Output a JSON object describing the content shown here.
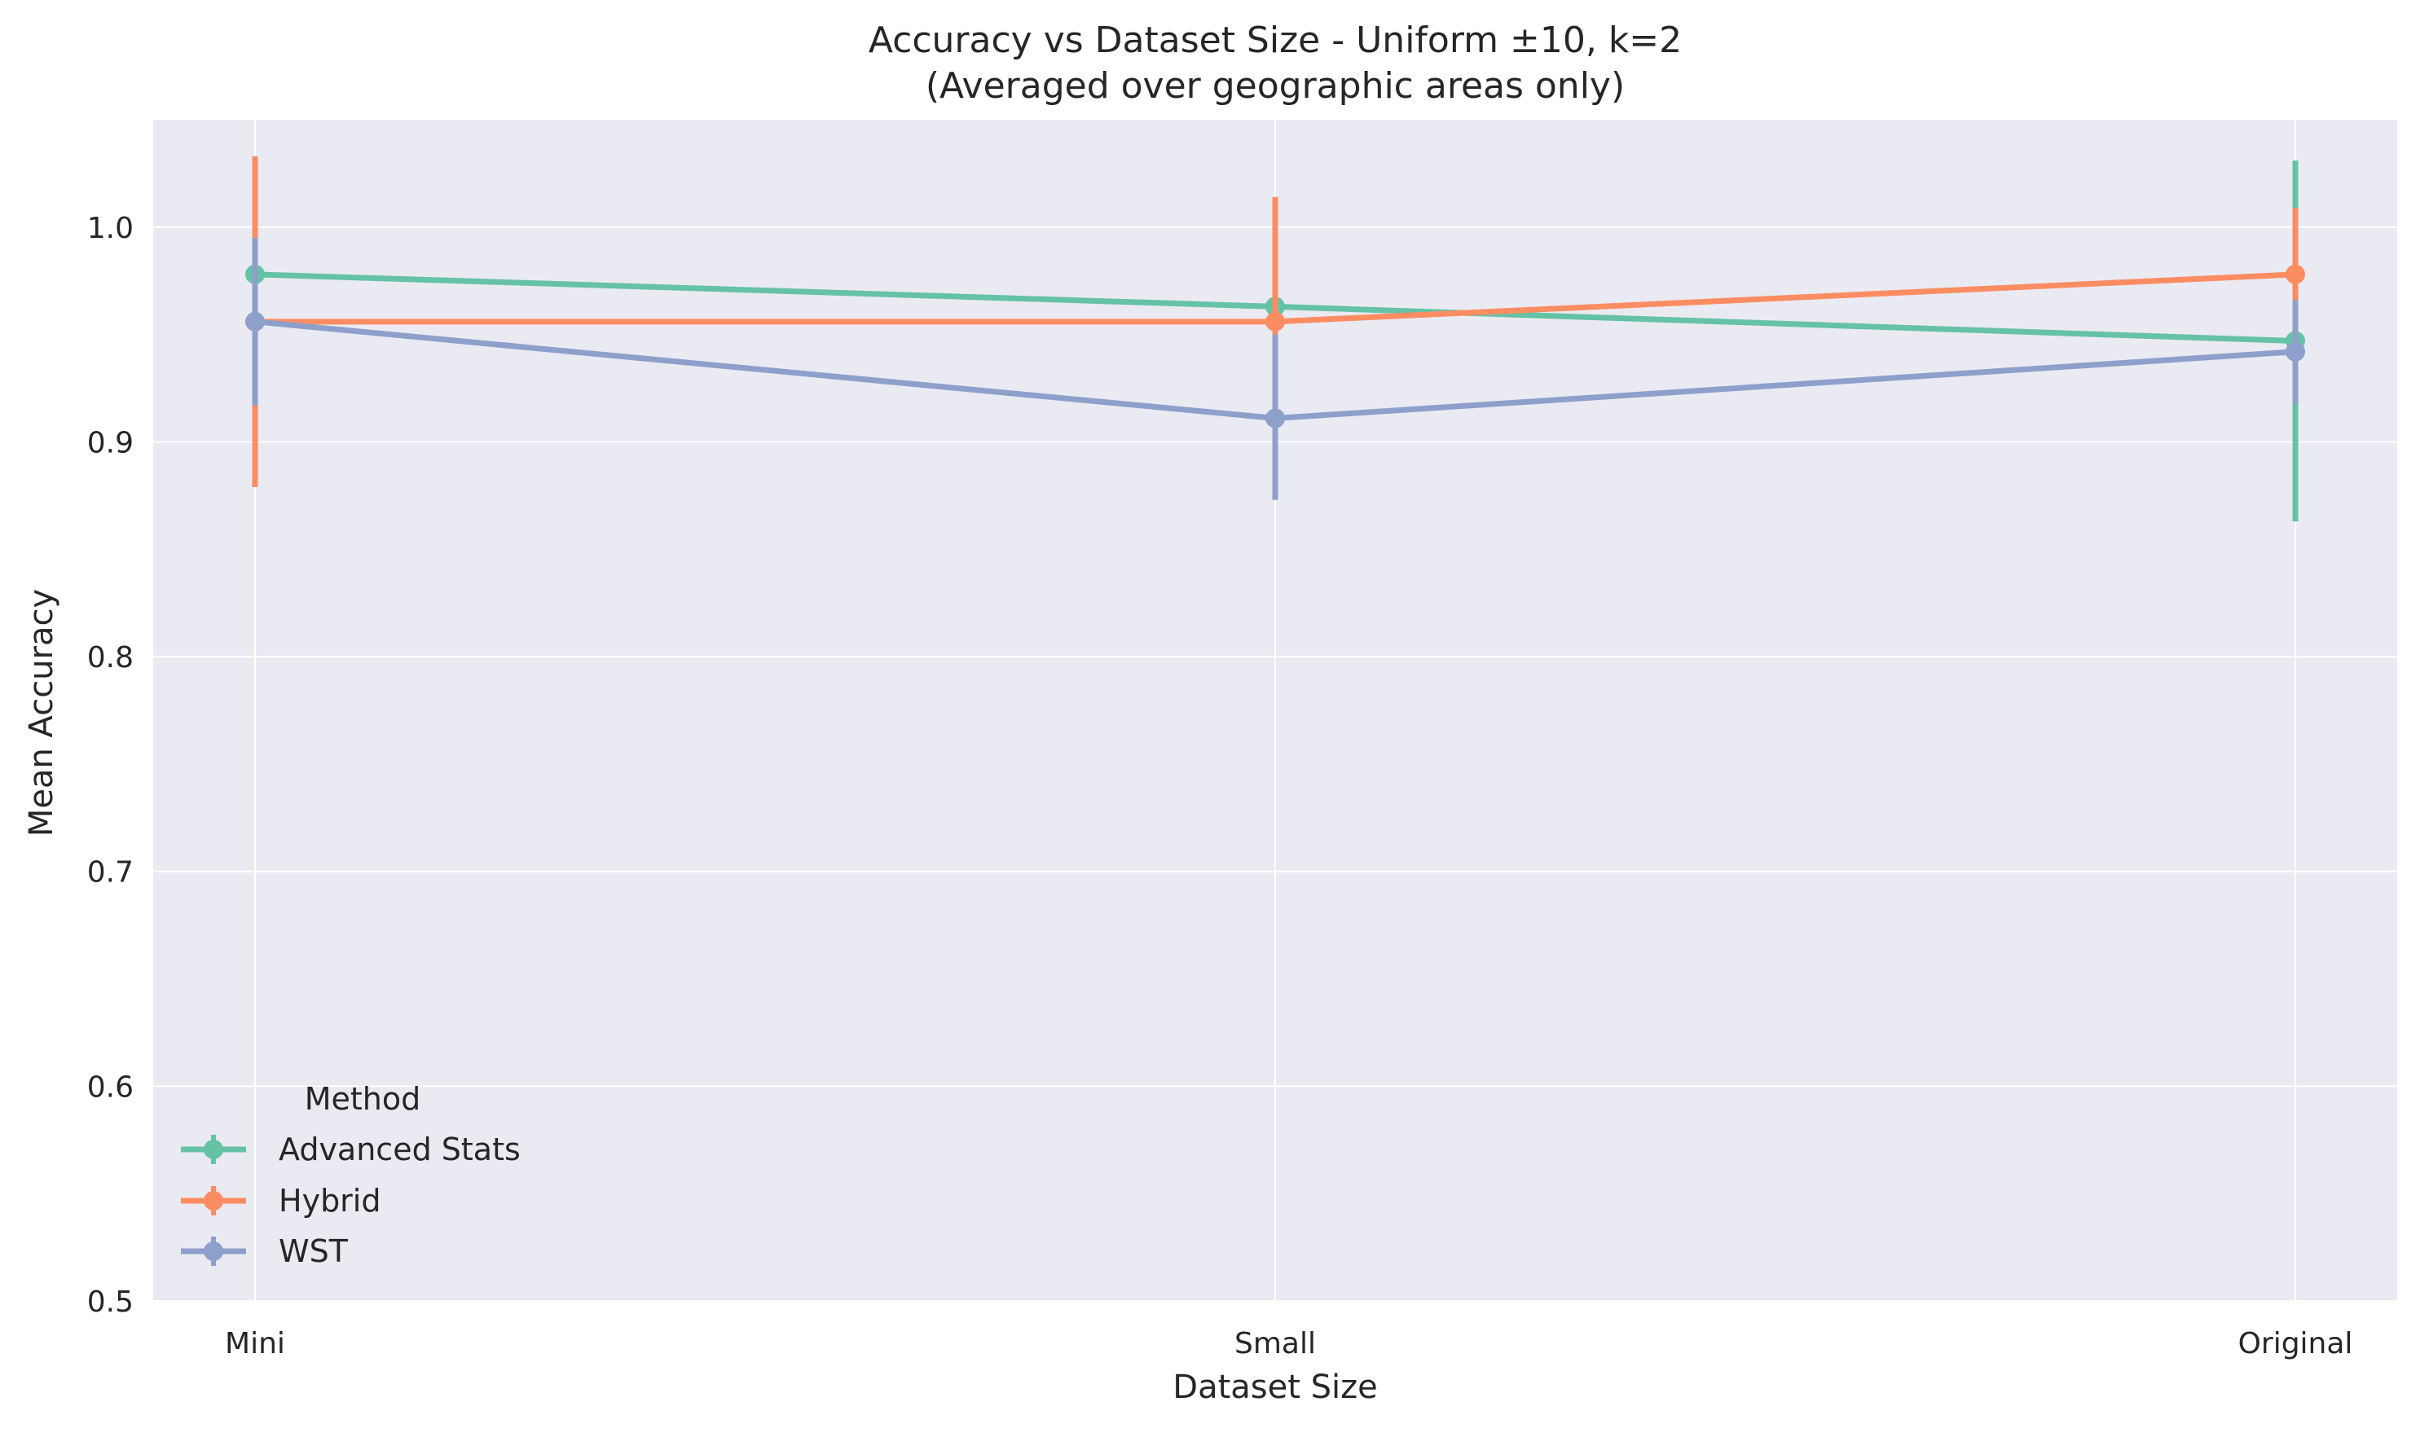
{
  "chart_data": {
    "type": "line",
    "title": "Accuracy vs Dataset Size - Uniform ±10, k=2",
    "subtitle": "(Averaged over geographic areas only)",
    "xlabel": "Dataset Size",
    "ylabel": "Mean Accuracy",
    "categories": [
      "Mini",
      "Small",
      "Original"
    ],
    "ylim": [
      0.5,
      1.05
    ],
    "yticks": [
      0.5,
      0.6,
      0.7,
      0.8,
      0.9,
      1.0
    ],
    "ytick_labels": [
      "0.5",
      "0.6",
      "0.7",
      "0.8",
      "0.9",
      "1.0"
    ],
    "grid": true,
    "legend": {
      "title": "Method",
      "placement": "lower-left"
    },
    "series": [
      {
        "name": "Advanced Stats",
        "color": "#66c2a5",
        "values": [
          0.978,
          0.963,
          0.947
        ],
        "error_low": [
          0.958,
          0.945,
          0.863
        ],
        "error_high": [
          0.996,
          0.98,
          1.031
        ]
      },
      {
        "name": "Hybrid",
        "color": "#fc8d62",
        "values": [
          0.956,
          0.956,
          0.978
        ],
        "error_low": [
          0.879,
          0.898,
          0.946
        ],
        "error_high": [
          1.033,
          1.014,
          1.009
        ]
      },
      {
        "name": "WST",
        "color": "#8da0cb",
        "values": [
          0.956,
          0.911,
          0.942
        ],
        "error_low": [
          0.917,
          0.873,
          0.918
        ],
        "error_high": [
          0.995,
          0.95,
          0.966
        ]
      }
    ]
  }
}
